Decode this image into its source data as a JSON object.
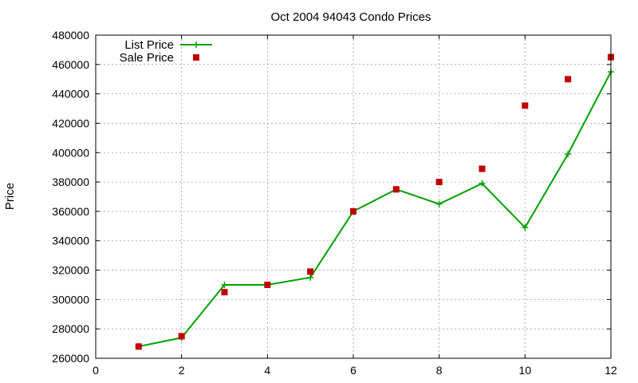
{
  "chart_data": {
    "type": "line",
    "title": "Oct 2004 94043 Condo Prices",
    "xlabel": "",
    "ylabel": "Price",
    "xlim": [
      0,
      12
    ],
    "ylim": [
      260000,
      480000
    ],
    "xticks": [
      0,
      2,
      4,
      6,
      8,
      10,
      12
    ],
    "yticks": [
      260000,
      280000,
      300000,
      320000,
      340000,
      360000,
      380000,
      400000,
      420000,
      440000,
      460000,
      480000
    ],
    "grid": true,
    "legend_position": "top-left",
    "series": [
      {
        "name": "List Price",
        "style": "linespoints",
        "color": "#00a000",
        "x": [
          1,
          2,
          3,
          4,
          5,
          6,
          7,
          8,
          9,
          10,
          11,
          12
        ],
        "y": [
          268000,
          274000,
          310000,
          310000,
          315000,
          360000,
          375000,
          365000,
          379000,
          349000,
          399000,
          455000
        ]
      },
      {
        "name": "Sale Price",
        "style": "points",
        "color": "#c00000",
        "x": [
          1,
          2,
          3,
          4,
          5,
          6,
          7,
          8,
          9,
          10,
          11,
          12
        ],
        "y": [
          268000,
          275000,
          305000,
          310000,
          319000,
          360000,
          375000,
          380000,
          389000,
          432000,
          450000,
          465000
        ]
      }
    ]
  }
}
